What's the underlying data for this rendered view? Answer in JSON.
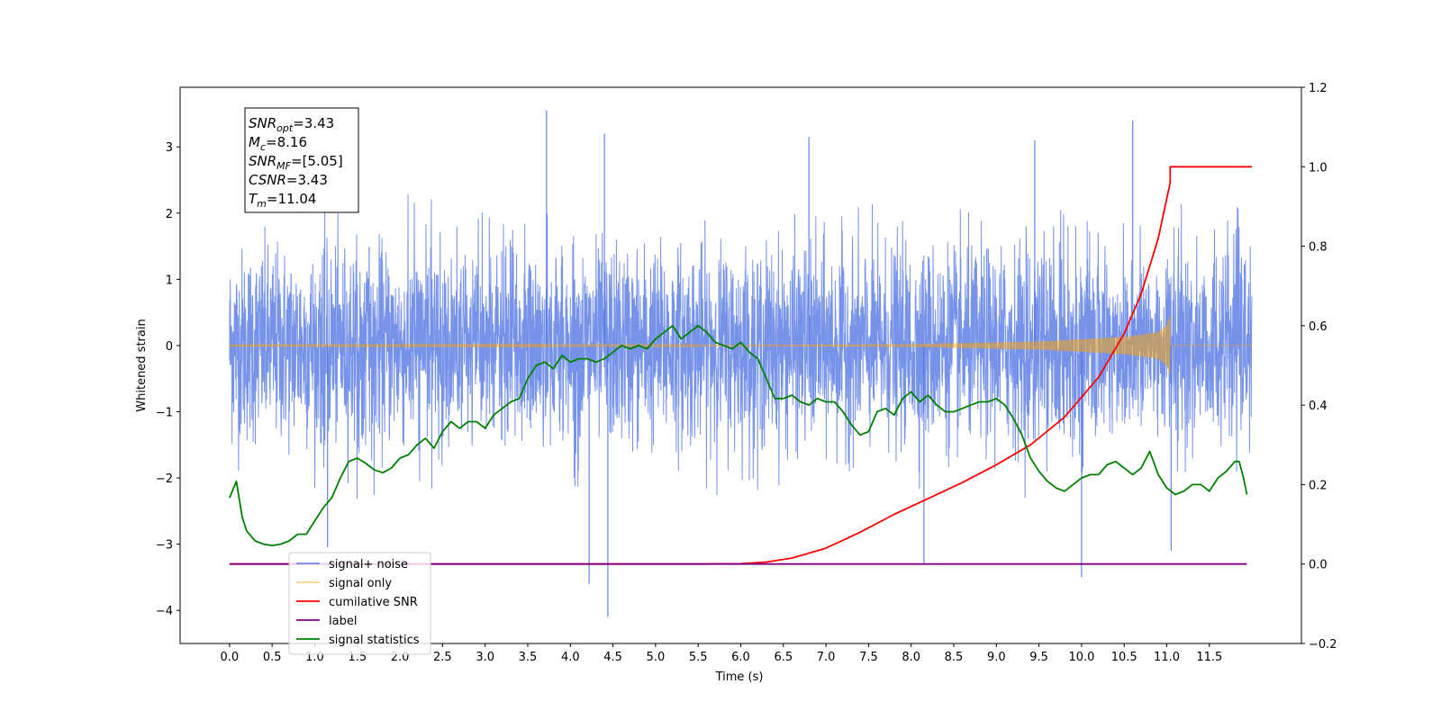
{
  "chart_data": {
    "type": "line",
    "xlabel": "Time (s)",
    "ylabel": "Whitened strain",
    "xlim": [
      -0.58,
      12.58
    ],
    "ylim": [
      -4.5,
      3.9
    ],
    "ylim_right": [
      -0.2,
      1.2
    ],
    "x_ticks": [
      0.0,
      0.5,
      1.0,
      1.5,
      2.0,
      2.5,
      3.0,
      3.5,
      4.0,
      4.5,
      5.0,
      5.5,
      6.0,
      6.5,
      7.0,
      7.5,
      8.0,
      8.5,
      9.0,
      9.5,
      10.0,
      10.5,
      11.0,
      11.5
    ],
    "x_tick_labels": [
      "0.0",
      "0.5",
      "1.0",
      "1.5",
      "2.0",
      "2.5",
      "3.0",
      "3.5",
      "4.0",
      "4.5",
      "5.0",
      "5.5",
      "6.0",
      "6.5",
      "7.0",
      "7.5",
      "8.0",
      "8.5",
      "9.0",
      "9.5",
      "10.0",
      "10.5",
      "11.0",
      "11.5"
    ],
    "y_ticks_left": [
      -4,
      -3,
      -2,
      -1,
      0,
      1,
      2,
      3
    ],
    "y_tick_labels_left": [
      "−4",
      "−3",
      "−2",
      "−1",
      "0",
      "1",
      "2",
      "3"
    ],
    "y_ticks_right": [
      -0.2,
      0.0,
      0.2,
      0.4,
      0.6,
      0.8,
      1.0,
      1.2
    ],
    "y_tick_labels_right": [
      "−0.2",
      "0.0",
      "0.2",
      "0.4",
      "0.6",
      "0.8",
      "1.0",
      "1.2"
    ],
    "grid": false,
    "legend_position": "lower-left",
    "annotation": {
      "lines": [
        {
          "base": "SNR",
          "sub": "opt",
          "value": "=3.43"
        },
        {
          "base": "M",
          "sub": "c",
          "value": "=8.16"
        },
        {
          "base": "SNR",
          "sub": "MF",
          "value": "=[5.05]"
        },
        {
          "base": "CSNR",
          "sub": "",
          "value": "=3.43"
        },
        {
          "base": "T",
          "sub": "m",
          "value": "=11.04"
        }
      ]
    },
    "series": [
      {
        "name": "signal+ noise",
        "color": "#4169e1",
        "axis": "left",
        "style": "noise",
        "x_range": [
          0.0,
          12.0
        ],
        "amplitude_band": [
          -2.0,
          2.0
        ],
        "peaks": [
          {
            "x": 3.72,
            "y": 3.55
          },
          {
            "x": 4.44,
            "y": -4.1
          },
          {
            "x": 4.22,
            "y": -3.6
          },
          {
            "x": 10.0,
            "y": -3.5
          },
          {
            "x": 10.6,
            "y": 3.4
          },
          {
            "x": 6.8,
            "y": 3.15
          },
          {
            "x": 8.15,
            "y": -3.3
          },
          {
            "x": 4.4,
            "y": 3.2
          },
          {
            "x": 11.05,
            "y": -3.1
          },
          {
            "x": 1.15,
            "y": -3.05
          },
          {
            "x": 9.45,
            "y": 3.1
          }
        ]
      },
      {
        "name": "signal only",
        "color": "#ffa500",
        "axis": "left",
        "style": "chirp",
        "x_range": [
          0.0,
          11.04
        ],
        "envelope": [
          [
            0.0,
            0.005
          ],
          [
            6.5,
            0.01
          ],
          [
            8.0,
            0.02
          ],
          [
            9.5,
            0.06
          ],
          [
            10.5,
            0.13
          ],
          [
            10.9,
            0.2
          ],
          [
            11.0,
            0.3
          ],
          [
            11.04,
            0.45
          ]
        ],
        "after_x": [
          11.04,
          12.0
        ],
        "after_y": 0.0
      },
      {
        "name": "cumilative SNR",
        "color": "#ff0000",
        "axis": "right",
        "x": [
          0.0,
          5.5,
          6.0,
          6.3,
          6.6,
          7.0,
          7.4,
          7.8,
          8.2,
          8.6,
          9.0,
          9.4,
          9.8,
          10.2,
          10.5,
          10.7,
          10.9,
          11.0,
          11.04,
          11.04,
          12.0
        ],
        "y": [
          0.0,
          0.0,
          0.001,
          0.005,
          0.015,
          0.04,
          0.08,
          0.125,
          0.165,
          0.205,
          0.25,
          0.3,
          0.37,
          0.47,
          0.58,
          0.68,
          0.82,
          0.92,
          0.96,
          1.0,
          1.0
        ]
      },
      {
        "name": "label",
        "color": "#800080",
        "axis": "right",
        "x": [
          0.0,
          11.94
        ],
        "y": [
          0.0,
          0.0
        ]
      },
      {
        "name": "signal statistics",
        "color": "#008000",
        "axis": "left",
        "x": [
          0.0,
          0.08,
          0.15,
          0.2,
          0.3,
          0.4,
          0.5,
          0.6,
          0.7,
          0.8,
          0.9,
          1.0,
          1.1,
          1.2,
          1.3,
          1.4,
          1.5,
          1.6,
          1.7,
          1.8,
          1.9,
          2.0,
          2.1,
          2.2,
          2.3,
          2.4,
          2.5,
          2.6,
          2.7,
          2.8,
          2.9,
          3.0,
          3.1,
          3.2,
          3.3,
          3.4,
          3.5,
          3.6,
          3.7,
          3.8,
          3.9,
          4.0,
          4.1,
          4.2,
          4.3,
          4.4,
          4.5,
          4.6,
          4.7,
          4.8,
          4.9,
          5.0,
          5.1,
          5.2,
          5.3,
          5.4,
          5.5,
          5.6,
          5.7,
          5.8,
          5.9,
          6.0,
          6.1,
          6.2,
          6.3,
          6.4,
          6.5,
          6.6,
          6.7,
          6.8,
          6.9,
          7.0,
          7.1,
          7.2,
          7.3,
          7.4,
          7.5,
          7.6,
          7.7,
          7.8,
          7.9,
          8.0,
          8.1,
          8.2,
          8.3,
          8.4,
          8.5,
          8.6,
          8.7,
          8.8,
          8.9,
          9.0,
          9.1,
          9.2,
          9.3,
          9.4,
          9.5,
          9.6,
          9.7,
          9.8,
          9.9,
          10.0,
          10.1,
          10.2,
          10.3,
          10.4,
          10.5,
          10.6,
          10.7,
          10.8,
          10.9,
          11.0,
          11.1,
          11.2,
          11.3,
          11.4,
          11.5,
          11.6,
          11.7,
          11.8,
          11.85,
          11.9,
          11.94
        ],
        "y": [
          -2.3,
          -2.05,
          -2.6,
          -2.8,
          -2.95,
          -3.0,
          -3.02,
          -3.0,
          -2.95,
          -2.85,
          -2.85,
          -2.65,
          -2.45,
          -2.3,
          -2.0,
          -1.75,
          -1.7,
          -1.78,
          -1.88,
          -1.92,
          -1.85,
          -1.7,
          -1.65,
          -1.5,
          -1.4,
          -1.55,
          -1.3,
          -1.15,
          -1.25,
          -1.15,
          -1.15,
          -1.25,
          -1.05,
          -0.95,
          -0.85,
          -0.8,
          -0.5,
          -0.3,
          -0.25,
          -0.35,
          -0.15,
          -0.25,
          -0.2,
          -0.2,
          -0.25,
          -0.2,
          -0.1,
          0.0,
          -0.05,
          0.0,
          -0.05,
          0.1,
          0.2,
          0.3,
          0.1,
          0.2,
          0.3,
          0.2,
          0.05,
          0.0,
          -0.05,
          0.05,
          -0.1,
          -0.2,
          -0.5,
          -0.8,
          -0.8,
          -0.75,
          -0.85,
          -0.9,
          -0.8,
          -0.85,
          -0.85,
          -1.0,
          -1.2,
          -1.35,
          -1.3,
          -1.0,
          -0.95,
          -1.05,
          -0.8,
          -0.7,
          -0.85,
          -0.75,
          -0.9,
          -1.0,
          -1.0,
          -0.95,
          -0.9,
          -0.85,
          -0.85,
          -0.8,
          -0.9,
          -1.1,
          -1.35,
          -1.7,
          -1.9,
          -2.05,
          -2.15,
          -2.2,
          -2.1,
          -2.0,
          -1.95,
          -1.95,
          -1.8,
          -1.75,
          -1.85,
          -1.95,
          -1.85,
          -1.6,
          -1.95,
          -2.15,
          -2.25,
          -2.2,
          -2.1,
          -2.1,
          -2.2,
          -2.0,
          -1.9,
          -1.75,
          -1.75,
          -2.0,
          -2.25
        ]
      }
    ]
  }
}
